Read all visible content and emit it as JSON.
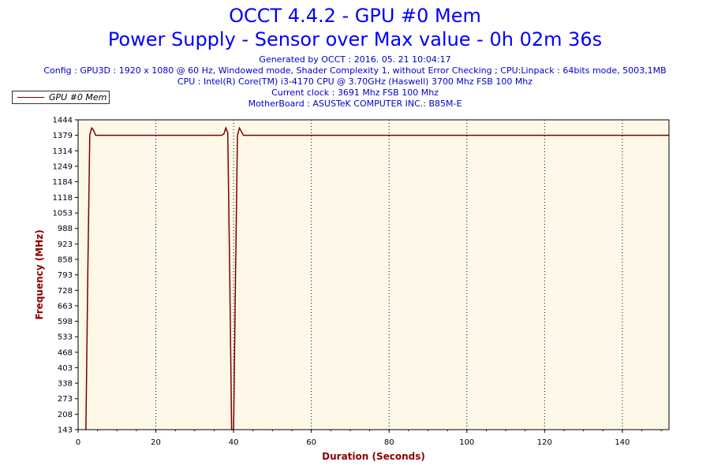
{
  "header": {
    "title": "OCCT 4.4.2 - GPU #0 Mem",
    "subtitle": "Power Supply - Sensor over Max value - 0h 02m 36s",
    "generated": "Generated by OCCT : 2016. 05. 21 10:04:17",
    "config": "Config : GPU3D : 1920 x 1080 @ 60 Hz, Windowed mode, Shader Complexity 1, without Error Checking ; CPU:Linpack : 64bits mode, 5003,1MB",
    "cpu": "CPU : Intel(R) Core(TM) i3-4170 CPU @ 3.70GHz (Haswell) 3700 Mhz FSB 100 Mhz",
    "clock": "Current clock : 3691 Mhz FSB 100 Mhz",
    "motherboard": "MotherBoard : ASUSTeK COMPUTER INC.: B85M-E"
  },
  "colors": {
    "series": "#7a0000",
    "plot_background": "#fdf8e8",
    "title": "#0000ff",
    "axis_title": "#8b0000"
  },
  "chart_data": {
    "type": "line",
    "title": "OCCT 4.4.2 - GPU #0 Mem",
    "xlabel": "Duration (Seconds)",
    "ylabel": "Frequency (MHz)",
    "xlim": [
      0,
      152
    ],
    "ylim": [
      143,
      1444
    ],
    "x_ticks": [
      0,
      20,
      40,
      60,
      80,
      100,
      120,
      140
    ],
    "y_ticks": [
      143,
      208,
      273,
      338,
      403,
      468,
      533,
      598,
      663,
      728,
      793,
      858,
      923,
      988,
      1053,
      1118,
      1184,
      1249,
      1314,
      1379,
      1444
    ],
    "grid": {
      "vertical": true,
      "horizontal": false,
      "style": "dotted"
    },
    "legend": {
      "position": "top-left",
      "entries": [
        "GPU #0 Mem"
      ]
    },
    "series": [
      {
        "name": "GPU #0 Mem",
        "x": [
          2,
          2.5,
          3,
          3.5,
          4,
          4.5,
          5,
          10,
          20,
          30,
          37,
          37.5,
          38,
          38.5,
          39,
          39.5,
          40,
          40.5,
          41,
          41.5,
          42,
          42.5,
          43,
          50,
          60,
          80,
          100,
          120,
          140,
          152
        ],
        "y": [
          143,
          800,
          1379,
          1410,
          1400,
          1379,
          1379,
          1379,
          1379,
          1379,
          1379,
          1385,
          1410,
          1390,
          800,
          143,
          143,
          800,
          1379,
          1410,
          1395,
          1379,
          1379,
          1379,
          1379,
          1379,
          1379,
          1379,
          1379,
          1379
        ]
      }
    ]
  }
}
